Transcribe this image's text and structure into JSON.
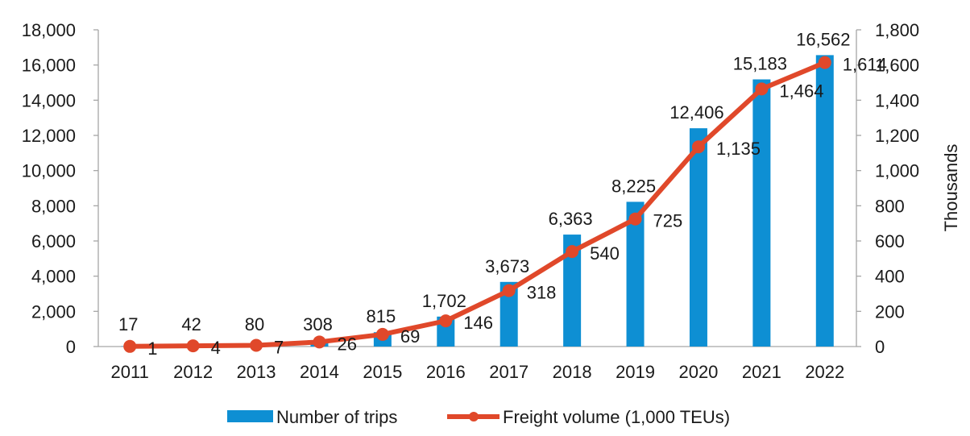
{
  "chart_data": {
    "type": "bar",
    "combo": [
      "bar",
      "line"
    ],
    "title": "",
    "categories": [
      "2011",
      "2012",
      "2013",
      "2014",
      "2015",
      "2016",
      "2017",
      "2018",
      "2019",
      "2020",
      "2021",
      "2022"
    ],
    "series": [
      {
        "name": "Number of trips",
        "type": "bar",
        "axis": "left",
        "color": "#0e8fd3",
        "values": [
          17,
          42,
          80,
          308,
          815,
          1702,
          3673,
          6363,
          8225,
          12406,
          15183,
          16562
        ],
        "labels": [
          "17",
          "42",
          "80",
          "308",
          "815",
          "1,702",
          "3,673",
          "6,363",
          "8,225",
          "12,406",
          "15,183",
          "16,562"
        ]
      },
      {
        "name": "Freight volume (1,000 TEUs)",
        "type": "line",
        "axis": "right",
        "color": "#e0482a",
        "values": [
          1,
          4,
          7,
          26,
          69,
          146,
          318,
          540,
          725,
          1135,
          1464,
          1614
        ],
        "labels": [
          "1",
          "4",
          "7",
          "26",
          "69",
          "146",
          "318",
          "540",
          "725",
          "1,135",
          "1,464",
          "1,614"
        ]
      }
    ],
    "left_axis": {
      "label": "",
      "ylim": [
        0,
        18000
      ],
      "ticks": [
        "0",
        "2,000",
        "4,000",
        "6,000",
        "8,000",
        "10,000",
        "12,000",
        "14,000",
        "16,000",
        "18,000"
      ]
    },
    "right_axis": {
      "label": "Thousands",
      "ylim": [
        0,
        1800
      ],
      "ticks": [
        "0",
        "200",
        "400",
        "600",
        "800",
        "1,000",
        "1,200",
        "1,400",
        "1,600",
        "1,800"
      ]
    },
    "grid": false,
    "legend": {
      "position": "bottom",
      "entries": [
        "Number of trips",
        "Freight volume (1,000 TEUs)"
      ]
    }
  }
}
